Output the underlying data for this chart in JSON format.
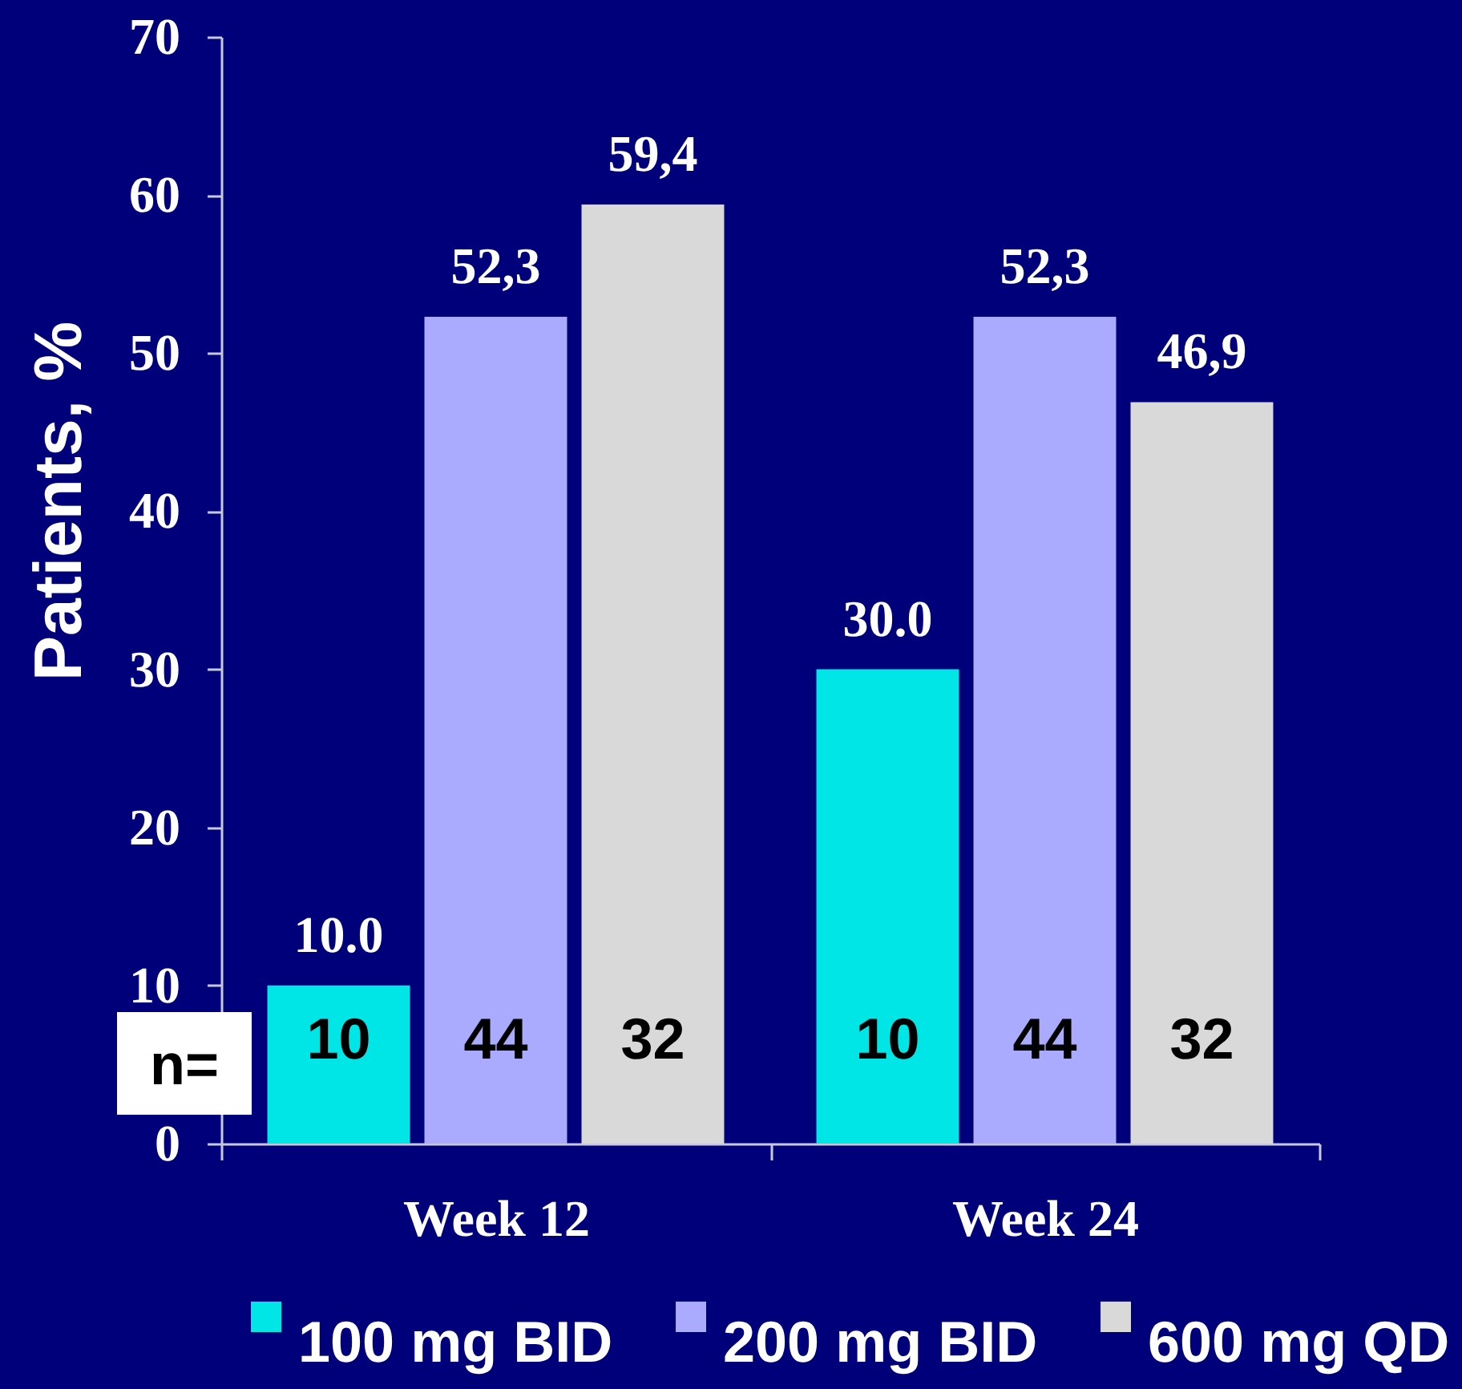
{
  "chart_data": {
    "type": "bar",
    "ylabel": "Patients, %",
    "categories": [
      "Week 12",
      "Week 24"
    ],
    "series": [
      {
        "name": "100 mg BID",
        "color": "#00e6e6",
        "values": [
          10.0,
          30.0
        ],
        "value_labels": [
          "10.0",
          "30.0"
        ]
      },
      {
        "name": "200 mg BID",
        "color": "#aaaaff",
        "values": [
          52.3,
          52.3
        ],
        "value_labels": [
          "52,3",
          "52,3"
        ]
      },
      {
        "name": "600 mg QD",
        "color": "#d9d9d9",
        "values": [
          59.4,
          46.9
        ],
        "value_labels": [
          "59,4",
          "46,9"
        ]
      }
    ],
    "ylim": [
      0,
      70
    ],
    "yticks": [
      0,
      10,
      20,
      30,
      40,
      50,
      60,
      70
    ],
    "legend": "bottom",
    "annotations": [
      "n=",
      "10",
      "44",
      "32",
      "10",
      "44",
      "32"
    ]
  }
}
